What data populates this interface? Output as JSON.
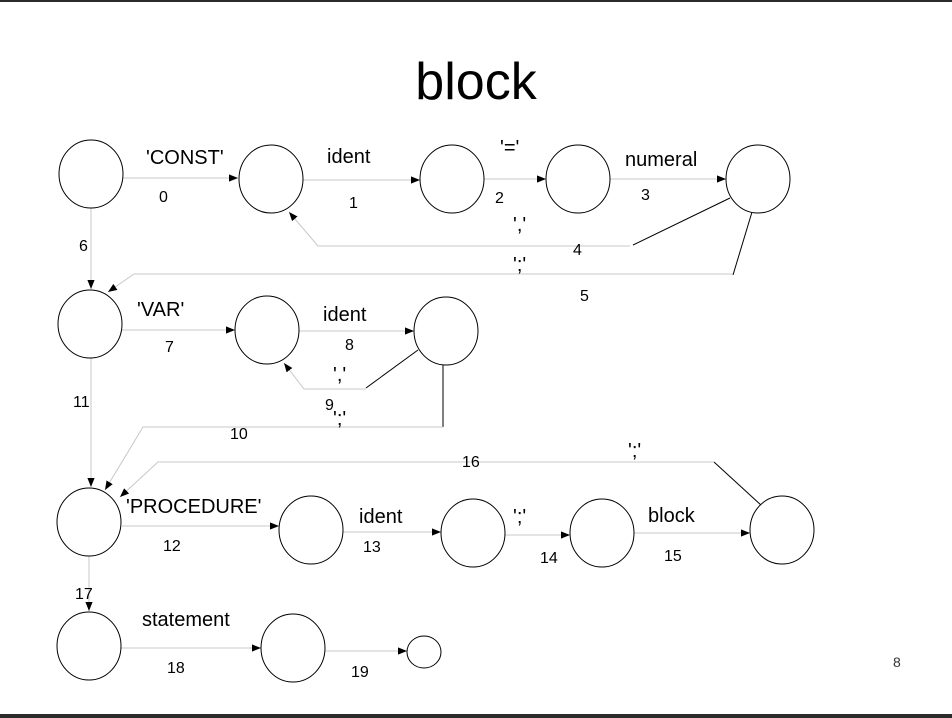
{
  "title": "block",
  "page_number": "8",
  "labels": {
    "const_kw": "'CONST'",
    "const_ident": "ident",
    "equals": "'='",
    "numeral": "numeral",
    "comma_const": "','",
    "semi_const": "';'",
    "var_kw": "'VAR'",
    "var_ident": "ident",
    "comma_var": "','",
    "semi_var": "';'",
    "proc_kw": "'PROCEDURE'",
    "proc_ident": "ident",
    "semi_proc1": "';'",
    "block_ref": "block",
    "semi_proc2": "';'",
    "statement": "statement"
  },
  "edge_numbers": [
    "0",
    "1",
    "2",
    "3",
    "4",
    "5",
    "6",
    "7",
    "8",
    "9",
    "10",
    "11",
    "12",
    "13",
    "14",
    "15",
    "16",
    "17",
    "18",
    "19"
  ]
}
